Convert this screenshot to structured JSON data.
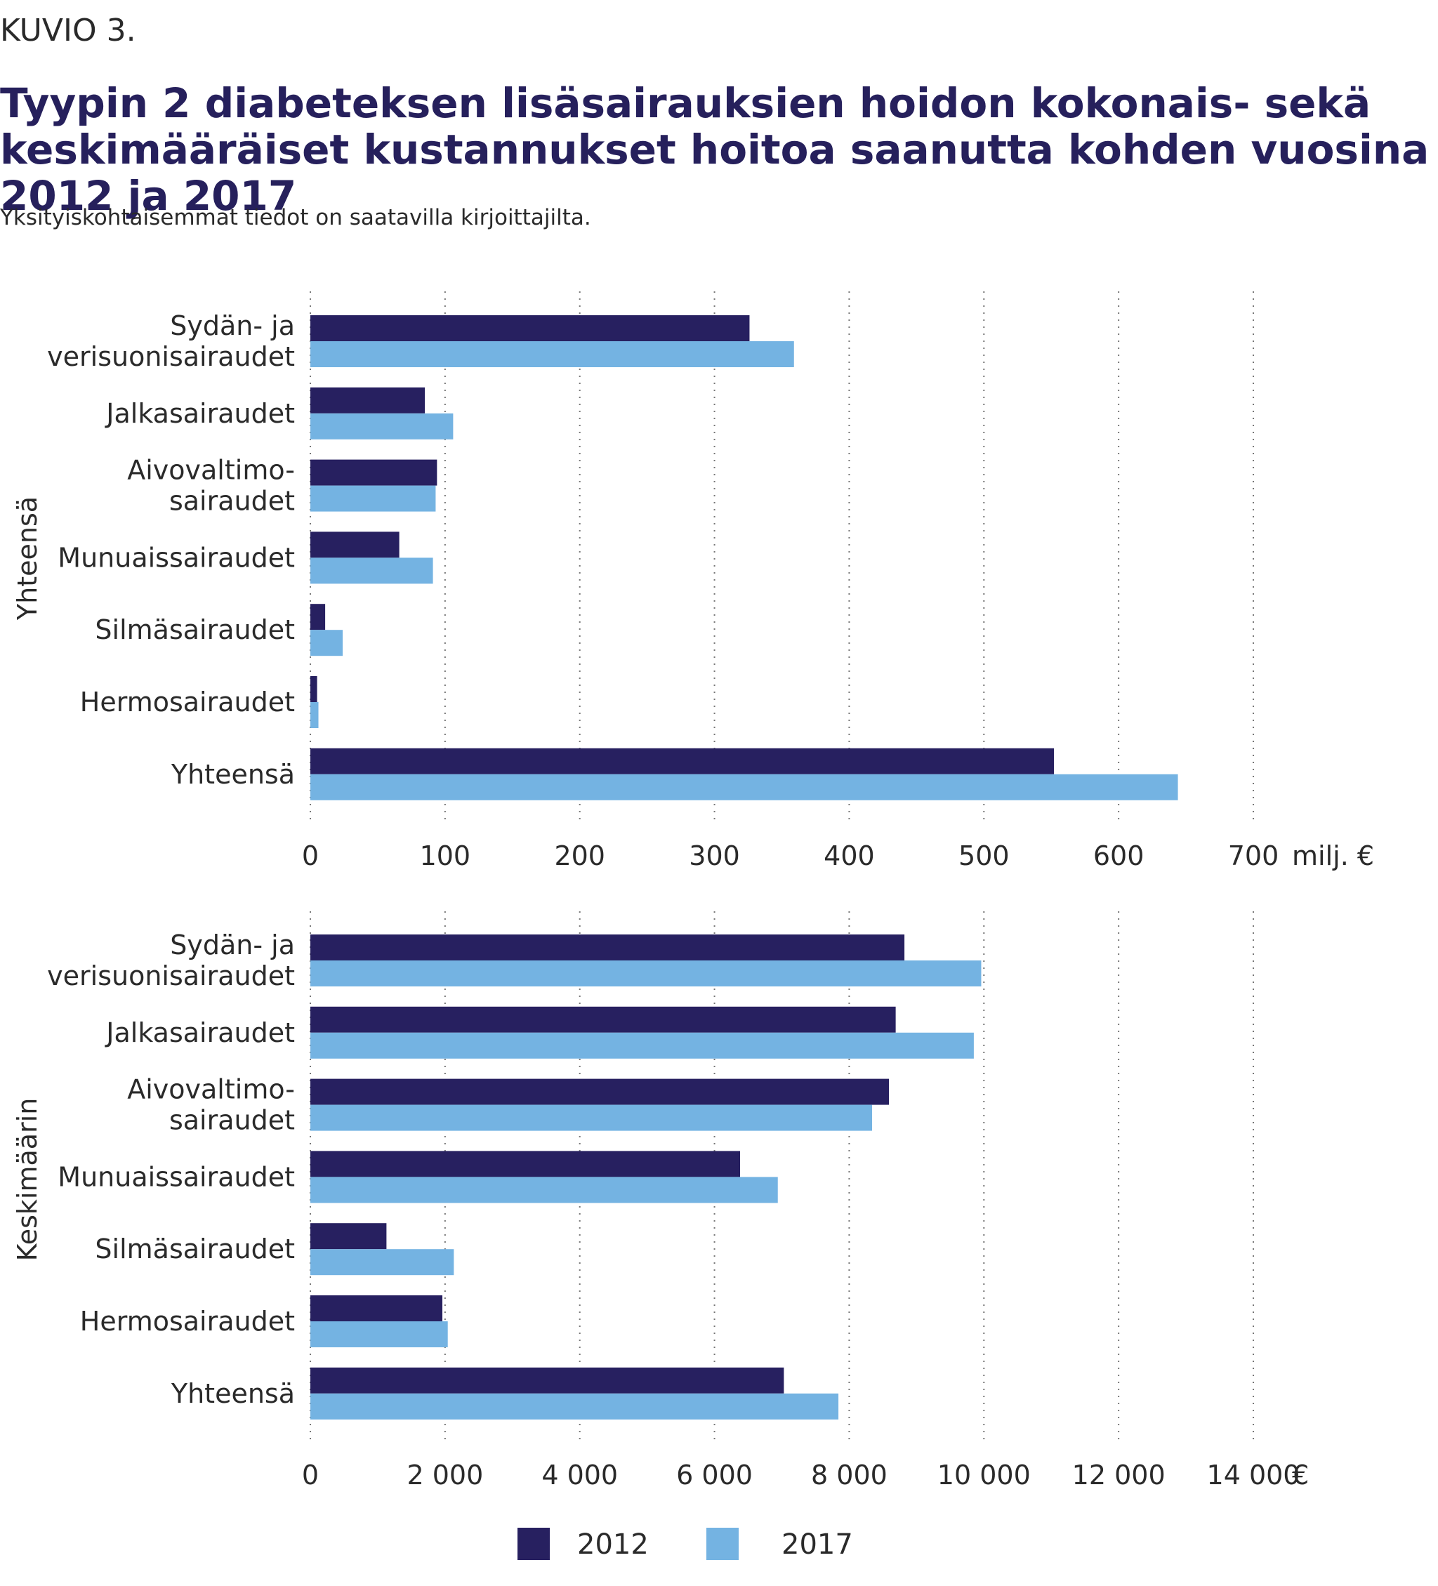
{
  "figure_label": "KUVIO 3.",
  "title": "Tyypin 2 diabeteksen lisäsairauksien hoidon kokonais- sekä keskimääräiset kustannukset hoitoa saanutta kohden vuosina 2012 ja 2017",
  "subtitle": "Yksityiskohtaisemmat tiedot on saatavilla kirjoittajilta.",
  "colors": {
    "2012": "#272060",
    "2017": "#74b3e2"
  },
  "chart_data": [
    {
      "type": "bar",
      "orientation": "horizontal",
      "group_label": "Yhteensä",
      "unit": "milj. €",
      "xlim": [
        0,
        700
      ],
      "ticks": [
        0,
        100,
        200,
        300,
        400,
        500,
        600,
        700
      ],
      "tick_labels": [
        "0",
        "100",
        "200",
        "300",
        "400",
        "500",
        "600",
        "700"
      ],
      "categories": [
        [
          "Sydän- ja",
          "verisuonisairaudet"
        ],
        [
          "Jalkasairaudet"
        ],
        [
          "Aivovaltimo-",
          "sairaudet"
        ],
        [
          "Munuaissairaudet"
        ],
        [
          "Silmäsairaudet"
        ],
        [
          "Hermosairaudet"
        ],
        [
          "Yhteensä"
        ]
      ],
      "series": [
        {
          "name": "2012",
          "values": [
            326,
            85,
            94,
            66,
            11,
            5,
            552
          ]
        },
        {
          "name": "2017",
          "values": [
            359,
            106,
            93,
            91,
            24,
            6,
            644
          ]
        }
      ],
      "grid": "vertical dotted",
      "legend": "bottom"
    },
    {
      "type": "bar",
      "orientation": "horizontal",
      "group_label": "Keskimäärin",
      "unit": "€",
      "xlim": [
        0,
        14000
      ],
      "ticks": [
        0,
        2000,
        4000,
        6000,
        8000,
        10000,
        12000,
        14000
      ],
      "tick_labels": [
        "0",
        "2 000",
        "4 000",
        "6 000",
        "8 000",
        "10 000",
        "12 000",
        "14 000"
      ],
      "categories": [
        [
          "Sydän- ja",
          "verisuonisairaudet"
        ],
        [
          "Jalkasairaudet"
        ],
        [
          "Aivovaltimo-",
          "sairaudet"
        ],
        [
          "Munuaissairaudet"
        ],
        [
          "Silmäsairaudet"
        ],
        [
          "Hermosairaudet"
        ],
        [
          "Yhteensä"
        ]
      ],
      "series": [
        {
          "name": "2012",
          "values": [
            8820,
            8690,
            8590,
            6380,
            1130,
            1960,
            7030
          ]
        },
        {
          "name": "2017",
          "values": [
            9960,
            9850,
            8340,
            6940,
            2130,
            2040,
            7840
          ]
        }
      ],
      "grid": "vertical dotted",
      "legend": "bottom"
    }
  ],
  "legend": [
    {
      "label": "2012"
    },
    {
      "label": "2017"
    }
  ]
}
